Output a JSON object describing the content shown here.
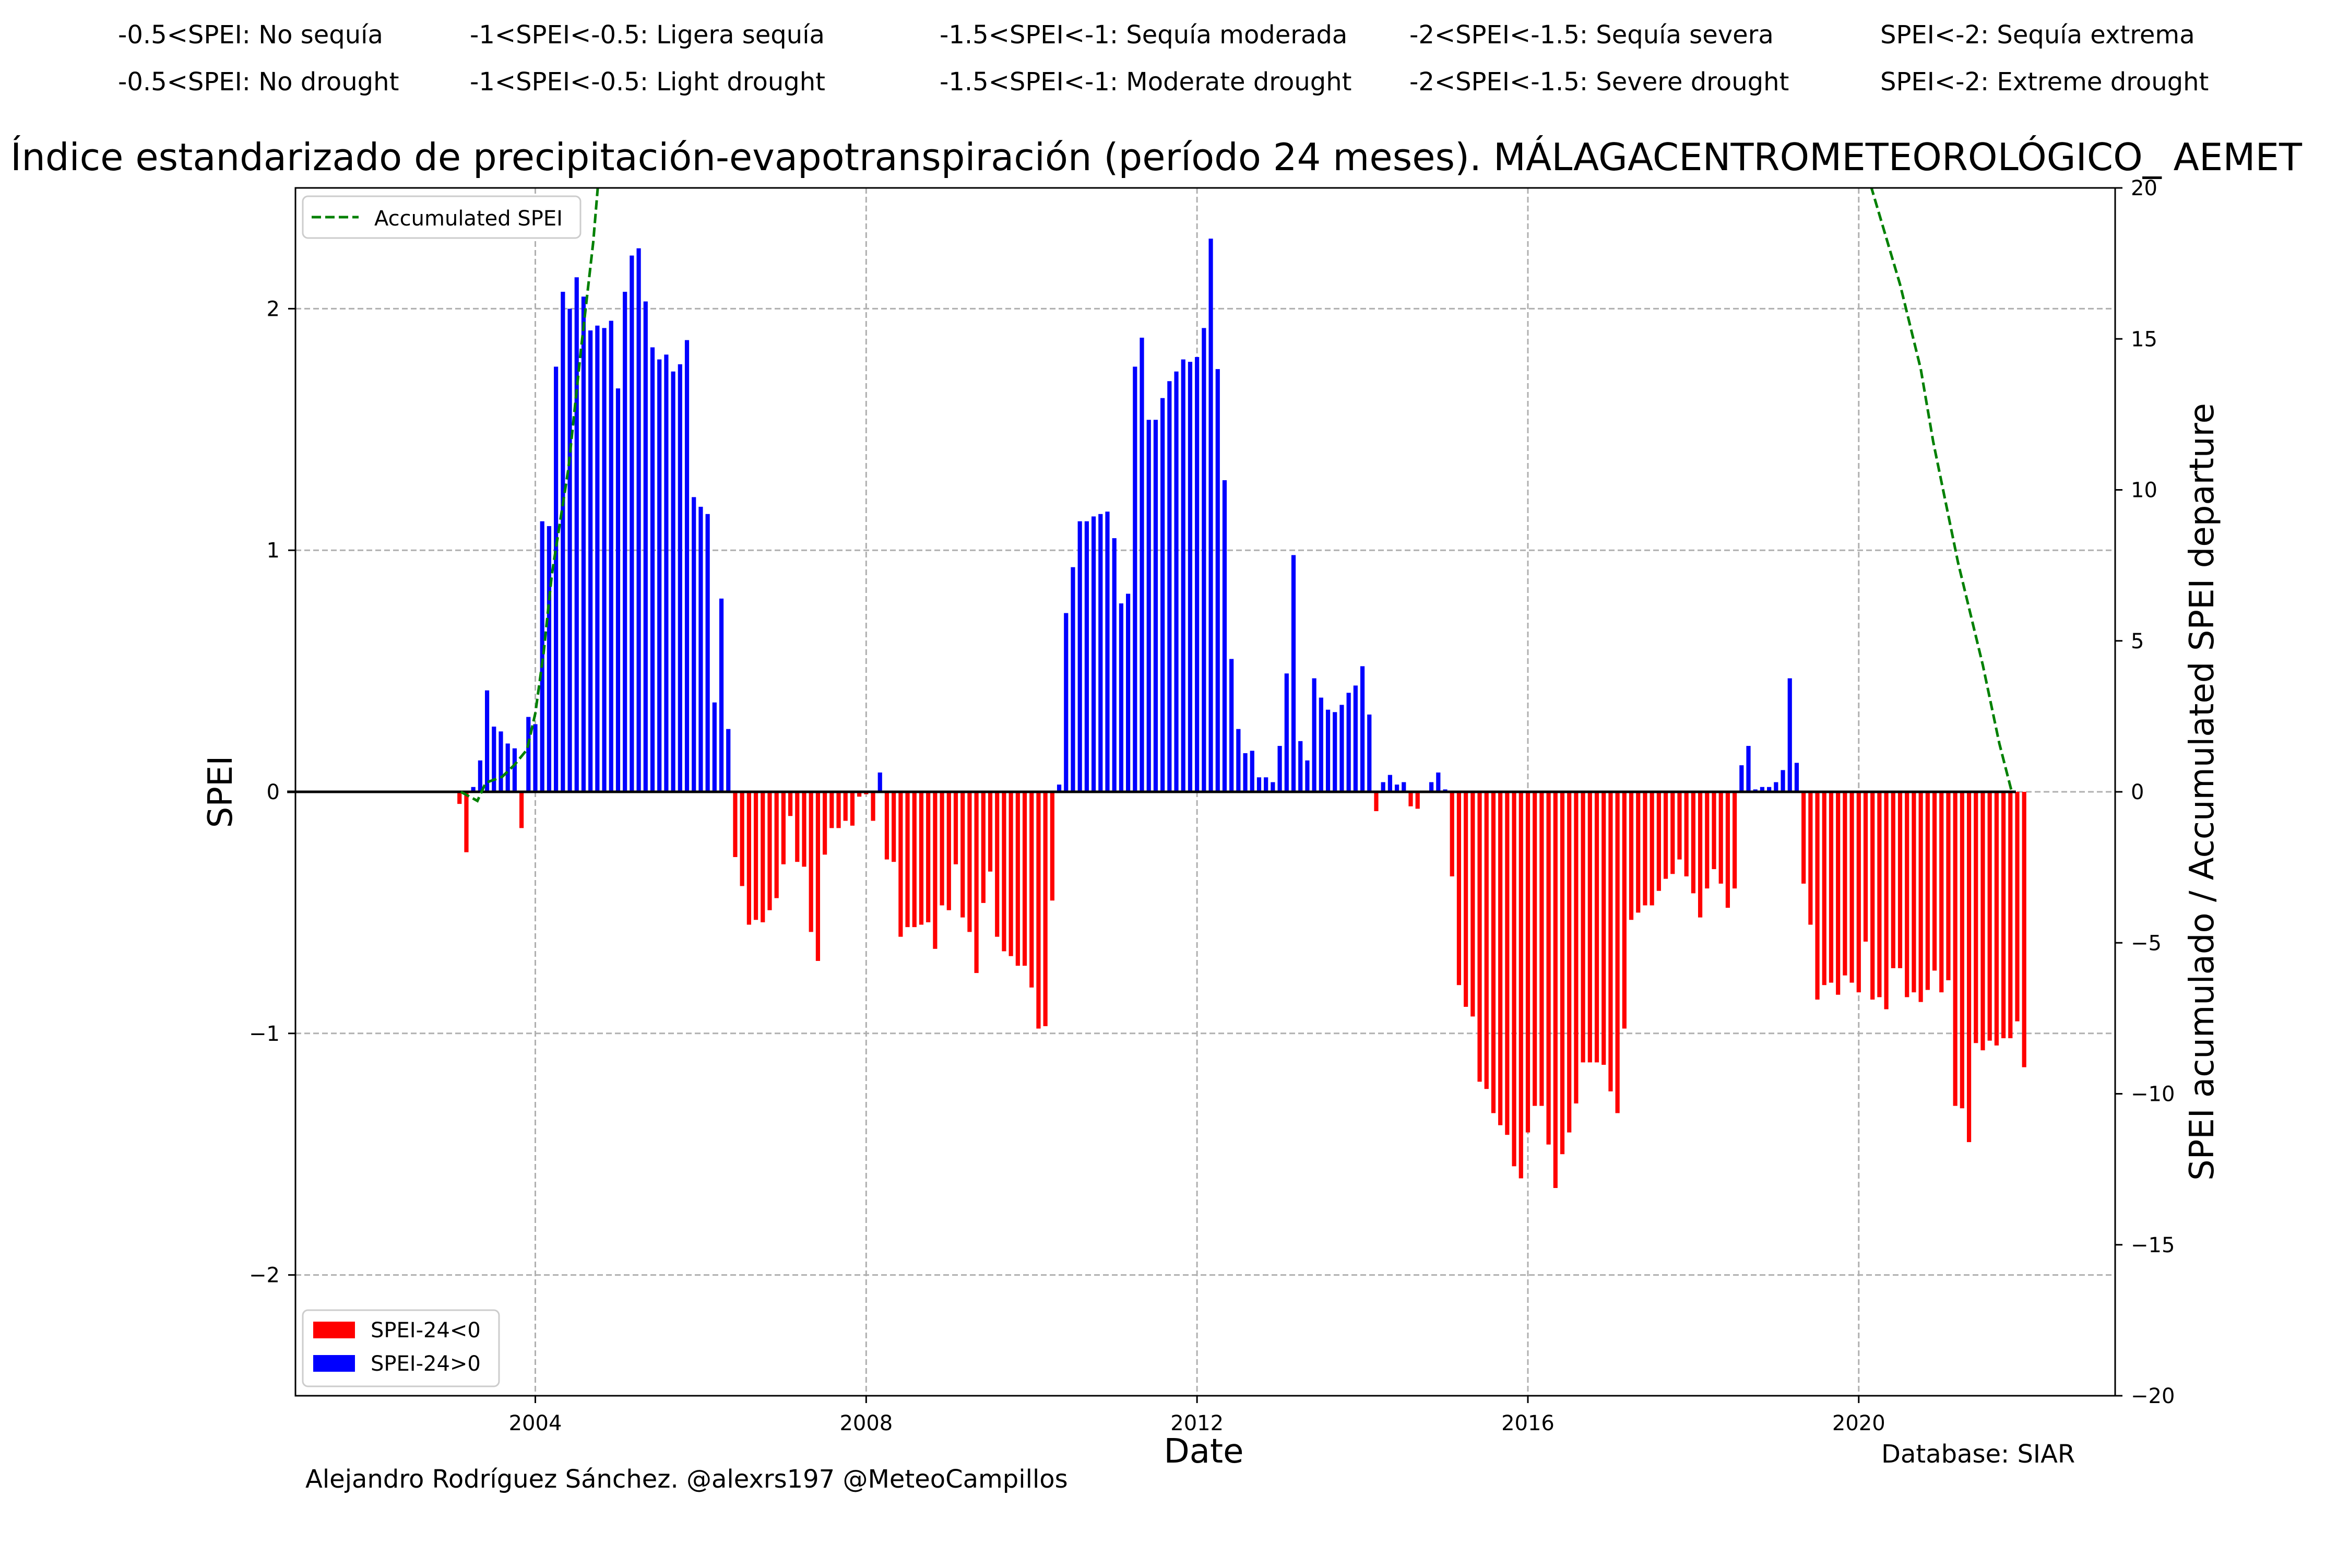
{
  "legend_top": {
    "spanish": [
      "-0.5<SPEI: No sequía",
      "-1<SPEI<-0.5: Ligera sequía",
      "-1.5<SPEI<-1: Sequía moderada",
      "-2<SPEI<-1.5: Sequía severa",
      "SPEI<-2: Sequía extrema"
    ],
    "english": [
      "-0.5<SPEI: No drought",
      "-1<SPEI<-0.5: Light drought",
      "-1.5<SPEI<-1: Moderate drought",
      "-2<SPEI<-1.5: Severe drought",
      "SPEI<-2: Extreme drought"
    ]
  },
  "footer": {
    "author": "Alejandro Rodríguez Sánchez. @alexrs197 @MeteoCampillos",
    "database": "Database: SIAR"
  },
  "chart_data": {
    "type": "bar",
    "title": "Índice estandarizado de precipitación-evapotranspiración (período 24 meses). MÁLAGACENTROMETEOROLÓGICO_ AEMET",
    "xlabel": "Date",
    "ylabel": "SPEI",
    "y2label": "SPEI acumulado / Accumulated SPEI departure",
    "xlim": [
      2001.1,
      2023.1
    ],
    "ylim": [
      -2.5,
      2.5
    ],
    "y2lim": [
      -20,
      20
    ],
    "xticks": [
      2004,
      2008,
      2012,
      2016,
      2020
    ],
    "yticks": [
      -2,
      -1,
      0,
      1,
      2
    ],
    "y2ticks": [
      -20,
      -15,
      -10,
      -5,
      0,
      5,
      10,
      15,
      20
    ],
    "grid": true,
    "colors": {
      "negative": "#ff0000",
      "positive": "#0000ff",
      "accumulated": "#008000",
      "zero_line": "#000000"
    },
    "legends": {
      "accumulated": {
        "label": "Accumulated SPEI",
        "position": "upper-left"
      },
      "bars": {
        "position": "lower-left",
        "entries": [
          {
            "label": "SPEI-24<0",
            "color": "#ff0000"
          },
          {
            "label": "SPEI-24>0",
            "color": "#0000ff"
          }
        ]
      }
    },
    "zero_line_range": [
      2001.0,
      2021.9
    ],
    "series": [
      {
        "name": "SPEI-24",
        "start": "2003-02",
        "step": "month",
        "values": [
          -0.05,
          -0.25,
          0.02,
          0.13,
          0.42,
          0.27,
          0.25,
          0.2,
          0.18,
          -0.15,
          0.31,
          0.28,
          1.12,
          1.1,
          1.76,
          2.07,
          2.0,
          2.13,
          2.05,
          1.91,
          1.93,
          1.92,
          1.95,
          1.67,
          2.07,
          2.22,
          2.25,
          2.03,
          1.84,
          1.79,
          1.81,
          1.74,
          1.77,
          1.87,
          1.22,
          1.18,
          1.15,
          0.37,
          0.8,
          0.26,
          -0.27,
          -0.39,
          -0.55,
          -0.53,
          -0.54,
          -0.49,
          -0.44,
          -0.3,
          -0.1,
          -0.29,
          -0.31,
          -0.58,
          -0.7,
          -0.26,
          -0.15,
          -0.15,
          -0.12,
          -0.14,
          -0.02,
          -0.01,
          -0.12,
          0.08,
          -0.28,
          -0.29,
          -0.6,
          -0.56,
          -0.56,
          -0.55,
          -0.54,
          -0.65,
          -0.47,
          -0.49,
          -0.3,
          -0.52,
          -0.58,
          -0.75,
          -0.46,
          -0.33,
          -0.6,
          -0.66,
          -0.68,
          -0.72,
          -0.72,
          -0.81,
          -0.98,
          -0.97,
          -0.45,
          0.03,
          0.74,
          0.93,
          1.12,
          1.12,
          1.14,
          1.15,
          1.16,
          1.05,
          0.78,
          0.82,
          1.76,
          1.88,
          1.54,
          1.54,
          1.63,
          1.7,
          1.74,
          1.79,
          1.78,
          1.8,
          1.92,
          2.29,
          1.75,
          1.29,
          0.55,
          0.26,
          0.16,
          0.17,
          0.06,
          0.06,
          0.04,
          0.19,
          0.49,
          0.98,
          0.21,
          0.13,
          0.47,
          0.39,
          0.34,
          0.33,
          0.36,
          0.41,
          0.44,
          0.52,
          0.32,
          -0.08,
          0.04,
          0.07,
          0.03,
          0.04,
          -0.06,
          -0.07,
          0,
          0.04,
          0.08,
          0.01,
          -0.35,
          -0.8,
          -0.89,
          -0.93,
          -1.2,
          -1.23,
          -1.33,
          -1.38,
          -1.42,
          -1.55,
          -1.6,
          -1.41,
          -1.3,
          -1.3,
          -1.46,
          -1.64,
          -1.5,
          -1.41,
          -1.29,
          -1.12,
          -1.12,
          -1.12,
          -1.13,
          -1.24,
          -1.33,
          -0.98,
          -0.53,
          -0.5,
          -0.47,
          -0.47,
          -0.41,
          -0.36,
          -0.34,
          -0.28,
          -0.35,
          -0.42,
          -0.52,
          -0.4,
          -0.32,
          -0.38,
          -0.48,
          -0.4,
          0.11,
          0.19,
          0.01,
          0.02,
          0.02,
          0.04,
          0.09,
          0.47,
          0.12,
          -0.38,
          -0.55,
          -0.86,
          -0.8,
          -0.79,
          -0.84,
          -0.76,
          -0.79,
          -0.83,
          -0.62,
          -0.86,
          -0.85,
          -0.9,
          -0.73,
          -0.73,
          -0.85,
          -0.83,
          -0.87,
          -0.82,
          -0.74,
          -0.83,
          -0.78,
          -1.3,
          -1.31,
          -1.45,
          -1.04,
          -1.07,
          -1.03,
          -1.05,
          -1.02,
          -1.02,
          -0.95,
          -1.14
        ]
      },
      {
        "name": "Accumulated SPEI",
        "x": [
          2003.1,
          2003.3,
          2003.4,
          2003.6,
          2003.75,
          2003.9,
          2004.0,
          2004.1,
          2004.2,
          2004.4,
          2004.55,
          2004.7,
          2004.77
        ],
        "values": [
          0,
          -0.3,
          0.3,
          0.5,
          0.9,
          1.4,
          2.6,
          4.6,
          7.2,
          10.7,
          14.6,
          18.2,
          20.5
        ]
      },
      {
        "name": "Accumulated SPEI (recent)",
        "x": [
          2020.1,
          2020.5,
          2020.75,
          2020.9,
          2021.2,
          2021.5,
          2021.7,
          2021.85
        ],
        "values": [
          20.5,
          16.8,
          14.0,
          11.6,
          7.6,
          4.2,
          1.6,
          0
        ]
      }
    ]
  }
}
